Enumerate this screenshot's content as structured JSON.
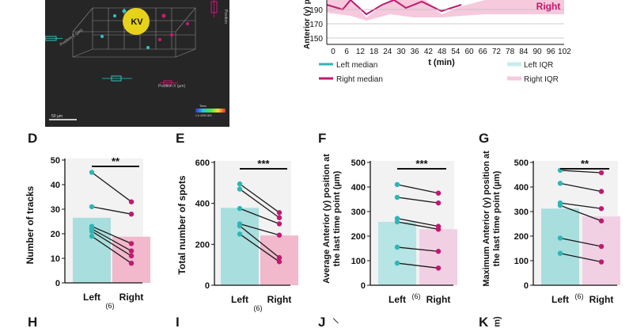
{
  "top_panel": {
    "kv_label": "KV",
    "axis_x_label": "Position X (µm)",
    "axis_z_label": "Position Z (µm)",
    "axis_y_label": "Position",
    "scale_bar_label": "50 µm",
    "time_label": "Time",
    "time_range": "1.0   4200.000"
  },
  "top_chart": {
    "ylabel": "Anterior (y) po",
    "right_label": "Right",
    "y_ticks": [
      "190",
      "170",
      "150"
    ],
    "x_ticks": [
      "0",
      "6",
      "12",
      "18",
      "24",
      "30",
      "36",
      "42",
      "48",
      "54",
      "60",
      "66",
      "72",
      "78",
      "84",
      "90",
      "96",
      "102"
    ],
    "xlabel": "t (min)",
    "legend": {
      "left_median": "Left median",
      "right_median": "Right median",
      "left_iqr": "Left IQR",
      "right_iqr": "Right IQR"
    },
    "colors": {
      "left": "#2db6b6",
      "right": "#c2186f",
      "left_iqr": "#c9ecec",
      "right_iqr": "#f6c9dd"
    }
  },
  "panel_letters": {
    "D": "D",
    "E": "E",
    "F": "F",
    "G": "G",
    "H": "H",
    "I": "I",
    "J": "J",
    "K": "K"
  },
  "n_label": "(6)",
  "bottom_stubs": {
    "j_stub": "/",
    "k_stub": "m)"
  },
  "chart_data": [
    {
      "id": "D",
      "type": "bar",
      "title": "",
      "ylabel": "Number of tracks",
      "categories": [
        "Left",
        "Right"
      ],
      "values": [
        26.5,
        18.8
      ],
      "ylim": [
        0,
        50
      ],
      "yticks": [
        "0",
        "10",
        "20",
        "30",
        "40",
        "50"
      ],
      "significance": "**",
      "pairs": [
        [
          45,
          33
        ],
        [
          31,
          28
        ],
        [
          23,
          16
        ],
        [
          22,
          13
        ],
        [
          21,
          11
        ],
        [
          19,
          8
        ]
      ],
      "colors": {
        "left": "#a9dede",
        "right": "#f2b8cc",
        "left_pt": "#2db6b6",
        "right_pt": "#c2186f"
      }
    },
    {
      "id": "E",
      "type": "bar",
      "title": "",
      "ylabel": "Total number of spots",
      "categories": [
        "Left",
        "Right"
      ],
      "values": [
        378,
        243
      ],
      "ylim": [
        0,
        600
      ],
      "yticks": [
        "0",
        "200",
        "400",
        "600"
      ],
      "significance": "***",
      "pairs": [
        [
          495,
          355
        ],
        [
          470,
          330
        ],
        [
          375,
          300
        ],
        [
          300,
          245
        ],
        [
          290,
          135
        ],
        [
          250,
          115
        ]
      ],
      "colors": {
        "left": "#a9dede",
        "right": "#f2b8cc",
        "left_pt": "#2db6b6",
        "right_pt": "#c2186f"
      }
    },
    {
      "id": "F",
      "type": "bar",
      "title": "",
      "ylabel": "Average Anterior (y) position at the last time point (µm)",
      "categories": [
        "Left",
        "Right"
      ],
      "values": [
        258,
        228
      ],
      "ylim": [
        0,
        500
      ],
      "yticks": [
        "0",
        "100",
        "200",
        "300",
        "400",
        "500"
      ],
      "significance": "***",
      "pairs": [
        [
          410,
          375
        ],
        [
          358,
          335
        ],
        [
          272,
          240
        ],
        [
          258,
          228
        ],
        [
          155,
          138
        ],
        [
          90,
          70
        ]
      ],
      "colors": {
        "left": "#b7e4e4",
        "right": "#f1d0e4",
        "left_pt": "#2db6b6",
        "right_pt": "#c2186f"
      }
    },
    {
      "id": "G",
      "type": "bar",
      "title": "",
      "ylabel": "Maximum Anterior (y) position at the last time point (µm)",
      "categories": [
        "Left",
        "Right"
      ],
      "values": [
        312,
        280
      ],
      "ylim": [
        0,
        500
      ],
      "yticks": [
        "0",
        "100",
        "200",
        "300",
        "400",
        "500"
      ],
      "significance": "**",
      "pairs": [
        [
          468,
          458
        ],
        [
          415,
          382
        ],
        [
          335,
          312
        ],
        [
          325,
          262
        ],
        [
          192,
          158
        ],
        [
          130,
          95
        ]
      ],
      "colors": {
        "left": "#a9dede",
        "right": "#f1d0e4",
        "left_pt": "#2db6b6",
        "right_pt": "#c2186f"
      }
    }
  ]
}
